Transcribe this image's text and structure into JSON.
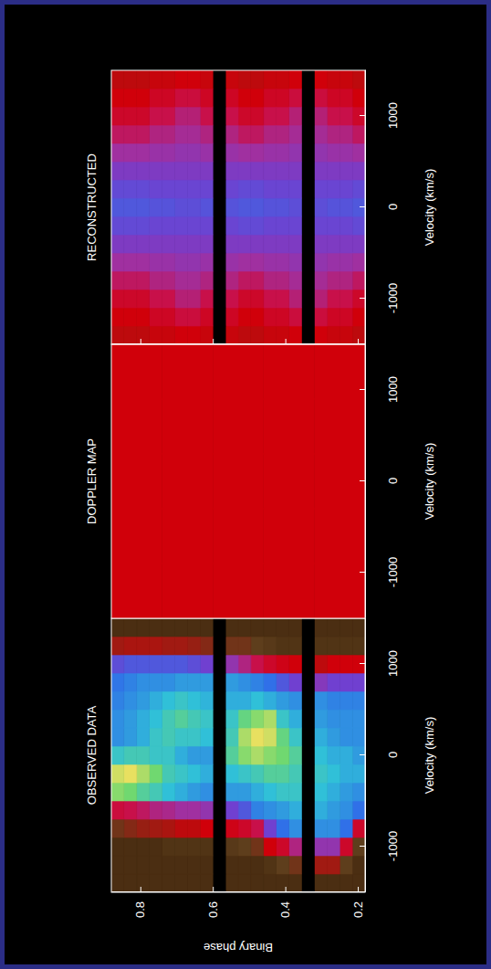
{
  "chart_data": [
    {
      "type": "heatmap",
      "title": "OBSERVED DATA",
      "xlabel": "Velocity (km/s)",
      "ylabel": "Binary phase",
      "xlim": [
        -1500,
        1500
      ],
      "xticks": [
        -1000,
        0,
        1000
      ],
      "ylim": [
        0.18,
        0.88
      ],
      "yticks": [
        0.2,
        0.4,
        0.6,
        0.8
      ],
      "zlim": [
        0,
        1
      ],
      "tick_labels": true,
      "x_bins": [
        -1500,
        -1300,
        -1100,
        -900,
        -700,
        -500,
        -300,
        -100,
        100,
        300,
        500,
        700,
        900,
        1100,
        1300,
        1500
      ],
      "y_bins": [
        0.18,
        0.215,
        0.25,
        0.285,
        0.32,
        0.355,
        0.39,
        0.425,
        0.46,
        0.495,
        0.53,
        0.565,
        0.6,
        0.635,
        0.67,
        0.705,
        0.74,
        0.775,
        0.81,
        0.845,
        0.88
      ],
      "cells": [
        [
          0.05,
          0.05,
          0.08,
          0.25,
          0.55,
          0.6,
          0.65,
          0.62,
          0.6,
          0.6,
          0.58,
          0.45,
          0.2,
          0.06,
          0.05
        ],
        [
          0.05,
          0.08,
          0.25,
          0.55,
          0.6,
          0.62,
          0.65,
          0.65,
          0.6,
          0.6,
          0.58,
          0.45,
          0.2,
          0.06,
          0.05
        ],
        [
          0.05,
          0.15,
          0.4,
          0.6,
          0.62,
          0.65,
          0.68,
          0.65,
          0.62,
          0.6,
          0.58,
          0.45,
          0.2,
          0.06,
          0.05
        ],
        [
          0.05,
          0.15,
          0.4,
          0.6,
          0.65,
          0.68,
          0.7,
          0.68,
          0.65,
          0.62,
          0.6,
          0.42,
          0.18,
          0.06,
          0.05
        ],
        [
          null,
          null,
          null,
          null,
          null,
          null,
          null,
          null,
          null,
          null,
          null,
          null,
          null,
          null,
          null
        ],
        [
          0.05,
          0.1,
          0.35,
          0.6,
          0.65,
          0.7,
          0.72,
          0.75,
          0.7,
          0.65,
          0.6,
          0.45,
          0.2,
          0.06,
          0.05
        ],
        [
          0.05,
          0.08,
          0.25,
          0.55,
          0.62,
          0.7,
          0.75,
          0.8,
          0.78,
          0.7,
          0.62,
          0.5,
          0.22,
          0.06,
          0.05
        ],
        [
          0.05,
          0.06,
          0.2,
          0.45,
          0.6,
          0.68,
          0.75,
          0.82,
          0.88,
          0.85,
          0.65,
          0.55,
          0.25,
          0.07,
          0.05
        ],
        [
          0.05,
          0.05,
          0.1,
          0.3,
          0.58,
          0.65,
          0.72,
          0.85,
          0.9,
          0.82,
          0.68,
          0.58,
          0.3,
          0.08,
          0.05
        ],
        [
          0.05,
          0.05,
          0.08,
          0.25,
          0.5,
          0.62,
          0.7,
          0.82,
          0.85,
          0.78,
          0.65,
          0.6,
          0.35,
          0.1,
          0.05
        ],
        [
          0.05,
          0.05,
          0.07,
          0.22,
          0.45,
          0.62,
          0.68,
          0.75,
          0.72,
          0.7,
          0.65,
          0.62,
          0.4,
          0.1,
          0.05
        ],
        [
          null,
          null,
          null,
          null,
          null,
          null,
          null,
          null,
          null,
          null,
          null,
          null,
          null,
          null,
          null
        ],
        [
          0.05,
          0.05,
          0.06,
          0.2,
          0.4,
          0.6,
          0.65,
          0.62,
          0.68,
          0.7,
          0.66,
          0.62,
          0.45,
          0.12,
          0.05
        ],
        [
          0.05,
          0.05,
          0.06,
          0.18,
          0.38,
          0.62,
          0.68,
          0.62,
          0.7,
          0.72,
          0.68,
          0.62,
          0.48,
          0.14,
          0.05
        ],
        [
          0.05,
          0.05,
          0.06,
          0.18,
          0.38,
          0.65,
          0.7,
          0.65,
          0.7,
          0.75,
          0.7,
          0.62,
          0.5,
          0.15,
          0.05
        ],
        [
          0.05,
          0.05,
          0.06,
          0.16,
          0.36,
          0.68,
          0.72,
          0.7,
          0.72,
          0.72,
          0.68,
          0.6,
          0.5,
          0.15,
          0.05
        ],
        [
          0.05,
          0.05,
          0.05,
          0.15,
          0.35,
          0.72,
          0.8,
          0.7,
          0.7,
          0.68,
          0.65,
          0.6,
          0.5,
          0.16,
          0.05
        ],
        [
          0.05,
          0.05,
          0.05,
          0.14,
          0.32,
          0.75,
          0.85,
          0.72,
          0.65,
          0.65,
          0.62,
          0.6,
          0.5,
          0.16,
          0.05
        ],
        [
          0.05,
          0.05,
          0.05,
          0.12,
          0.3,
          0.8,
          0.9,
          0.72,
          0.62,
          0.62,
          0.6,
          0.58,
          0.5,
          0.16,
          0.05
        ],
        [
          0.05,
          0.05,
          0.05,
          0.1,
          0.28,
          0.82,
          0.88,
          0.7,
          0.6,
          0.6,
          0.58,
          0.56,
          0.48,
          0.15,
          0.05
        ]
      ]
    },
    {
      "type": "heatmap",
      "title": "DOPPLER MAP",
      "xlabel": "Velocity (km/s)",
      "xlim": [
        -1500,
        1500
      ],
      "xticks": [
        -1000,
        0,
        1000
      ],
      "ylim": [
        -1500,
        1500
      ],
      "zlim": [
        0,
        1
      ],
      "tick_labels": "x",
      "x_bins": [
        -1500,
        -900,
        -300,
        300,
        900,
        1500
      ],
      "y_bins": [
        -1500,
        -900,
        -300,
        300,
        900,
        1500
      ],
      "cells": [
        [
          0.2,
          0.2,
          0.2,
          0.2,
          0.2
        ],
        [
          0.2,
          0.2,
          0.2,
          0.2,
          0.2
        ],
        [
          0.2,
          0.2,
          0.2,
          0.2,
          0.2
        ],
        [
          0.2,
          0.2,
          0.2,
          0.2,
          0.2
        ],
        [
          0.2,
          0.2,
          0.2,
          0.2,
          0.2
        ]
      ]
    },
    {
      "type": "heatmap",
      "title": "RECONSTRUCTED",
      "xlabel": "Velocity (km/s)",
      "xlim": [
        -1500,
        1500
      ],
      "xticks": [
        -1000,
        0,
        1000
      ],
      "ylim": [
        0.18,
        0.88
      ],
      "yticks": [
        0.2,
        0.4,
        0.6,
        0.8
      ],
      "zlim": [
        0,
        1
      ],
      "tick_labels": "x",
      "x_bins": [
        -1500,
        -1300,
        -1100,
        -900,
        -700,
        -500,
        -300,
        -100,
        100,
        300,
        500,
        700,
        900,
        1100,
        1300,
        1500
      ],
      "y_bins": [
        0.18,
        0.215,
        0.25,
        0.285,
        0.32,
        0.355,
        0.39,
        0.425,
        0.46,
        0.495,
        0.53,
        0.565,
        0.6,
        0.635,
        0.67,
        0.705,
        0.74,
        0.775,
        0.81,
        0.845,
        0.88
      ],
      "cells": [
        [
          0.18,
          0.2,
          0.25,
          0.32,
          0.38,
          0.43,
          0.47,
          0.5,
          0.47,
          0.43,
          0.38,
          0.32,
          0.25,
          0.2,
          0.18
        ],
        [
          0.19,
          0.24,
          0.3,
          0.35,
          0.39,
          0.43,
          0.46,
          0.49,
          0.46,
          0.43,
          0.39,
          0.35,
          0.3,
          0.24,
          0.19
        ],
        [
          0.19,
          0.24,
          0.3,
          0.35,
          0.39,
          0.43,
          0.46,
          0.49,
          0.46,
          0.43,
          0.39,
          0.35,
          0.3,
          0.24,
          0.19
        ],
        [
          0.2,
          0.28,
          0.34,
          0.37,
          0.4,
          0.43,
          0.46,
          0.48,
          0.46,
          0.43,
          0.4,
          0.37,
          0.34,
          0.28,
          0.2
        ],
        [
          null,
          null,
          null,
          null,
          null,
          null,
          null,
          null,
          null,
          null,
          null,
          null,
          null,
          null,
          null
        ],
        [
          0.2,
          0.28,
          0.34,
          0.37,
          0.4,
          0.43,
          0.46,
          0.48,
          0.46,
          0.43,
          0.4,
          0.37,
          0.34,
          0.28,
          0.2
        ],
        [
          0.19,
          0.24,
          0.3,
          0.35,
          0.39,
          0.43,
          0.46,
          0.49,
          0.46,
          0.43,
          0.39,
          0.35,
          0.3,
          0.24,
          0.19
        ],
        [
          0.19,
          0.24,
          0.3,
          0.35,
          0.39,
          0.43,
          0.46,
          0.49,
          0.46,
          0.43,
          0.39,
          0.35,
          0.3,
          0.24,
          0.19
        ],
        [
          0.18,
          0.2,
          0.25,
          0.32,
          0.38,
          0.43,
          0.47,
          0.5,
          0.47,
          0.43,
          0.38,
          0.32,
          0.25,
          0.2,
          0.18
        ],
        [
          0.18,
          0.2,
          0.25,
          0.32,
          0.38,
          0.43,
          0.47,
          0.5,
          0.47,
          0.43,
          0.38,
          0.32,
          0.25,
          0.2,
          0.18
        ],
        [
          0.19,
          0.24,
          0.3,
          0.35,
          0.39,
          0.43,
          0.46,
          0.49,
          0.46,
          0.43,
          0.39,
          0.35,
          0.3,
          0.24,
          0.19
        ],
        [
          null,
          null,
          null,
          null,
          null,
          null,
          null,
          null,
          null,
          null,
          null,
          null,
          null,
          null,
          null
        ],
        [
          0.19,
          0.24,
          0.3,
          0.35,
          0.39,
          0.43,
          0.46,
          0.49,
          0.46,
          0.43,
          0.39,
          0.35,
          0.3,
          0.24,
          0.19
        ],
        [
          0.2,
          0.28,
          0.34,
          0.37,
          0.4,
          0.43,
          0.46,
          0.48,
          0.46,
          0.43,
          0.4,
          0.37,
          0.34,
          0.28,
          0.2
        ],
        [
          0.2,
          0.28,
          0.34,
          0.37,
          0.4,
          0.43,
          0.46,
          0.48,
          0.46,
          0.43,
          0.4,
          0.37,
          0.34,
          0.28,
          0.2
        ],
        [
          0.19,
          0.24,
          0.3,
          0.35,
          0.39,
          0.43,
          0.46,
          0.49,
          0.46,
          0.43,
          0.39,
          0.35,
          0.3,
          0.24,
          0.19
        ],
        [
          0.19,
          0.24,
          0.3,
          0.35,
          0.39,
          0.43,
          0.46,
          0.49,
          0.46,
          0.43,
          0.39,
          0.35,
          0.3,
          0.24,
          0.19
        ],
        [
          0.18,
          0.2,
          0.25,
          0.32,
          0.38,
          0.43,
          0.47,
          0.5,
          0.47,
          0.43,
          0.38,
          0.32,
          0.25,
          0.2,
          0.18
        ],
        [
          0.18,
          0.2,
          0.25,
          0.32,
          0.38,
          0.43,
          0.47,
          0.5,
          0.47,
          0.43,
          0.38,
          0.32,
          0.25,
          0.2,
          0.18
        ],
        [
          0.18,
          0.2,
          0.25,
          0.32,
          0.38,
          0.43,
          0.47,
          0.5,
          0.47,
          0.43,
          0.38,
          0.32,
          0.25,
          0.2,
          0.18
        ]
      ]
    }
  ]
}
